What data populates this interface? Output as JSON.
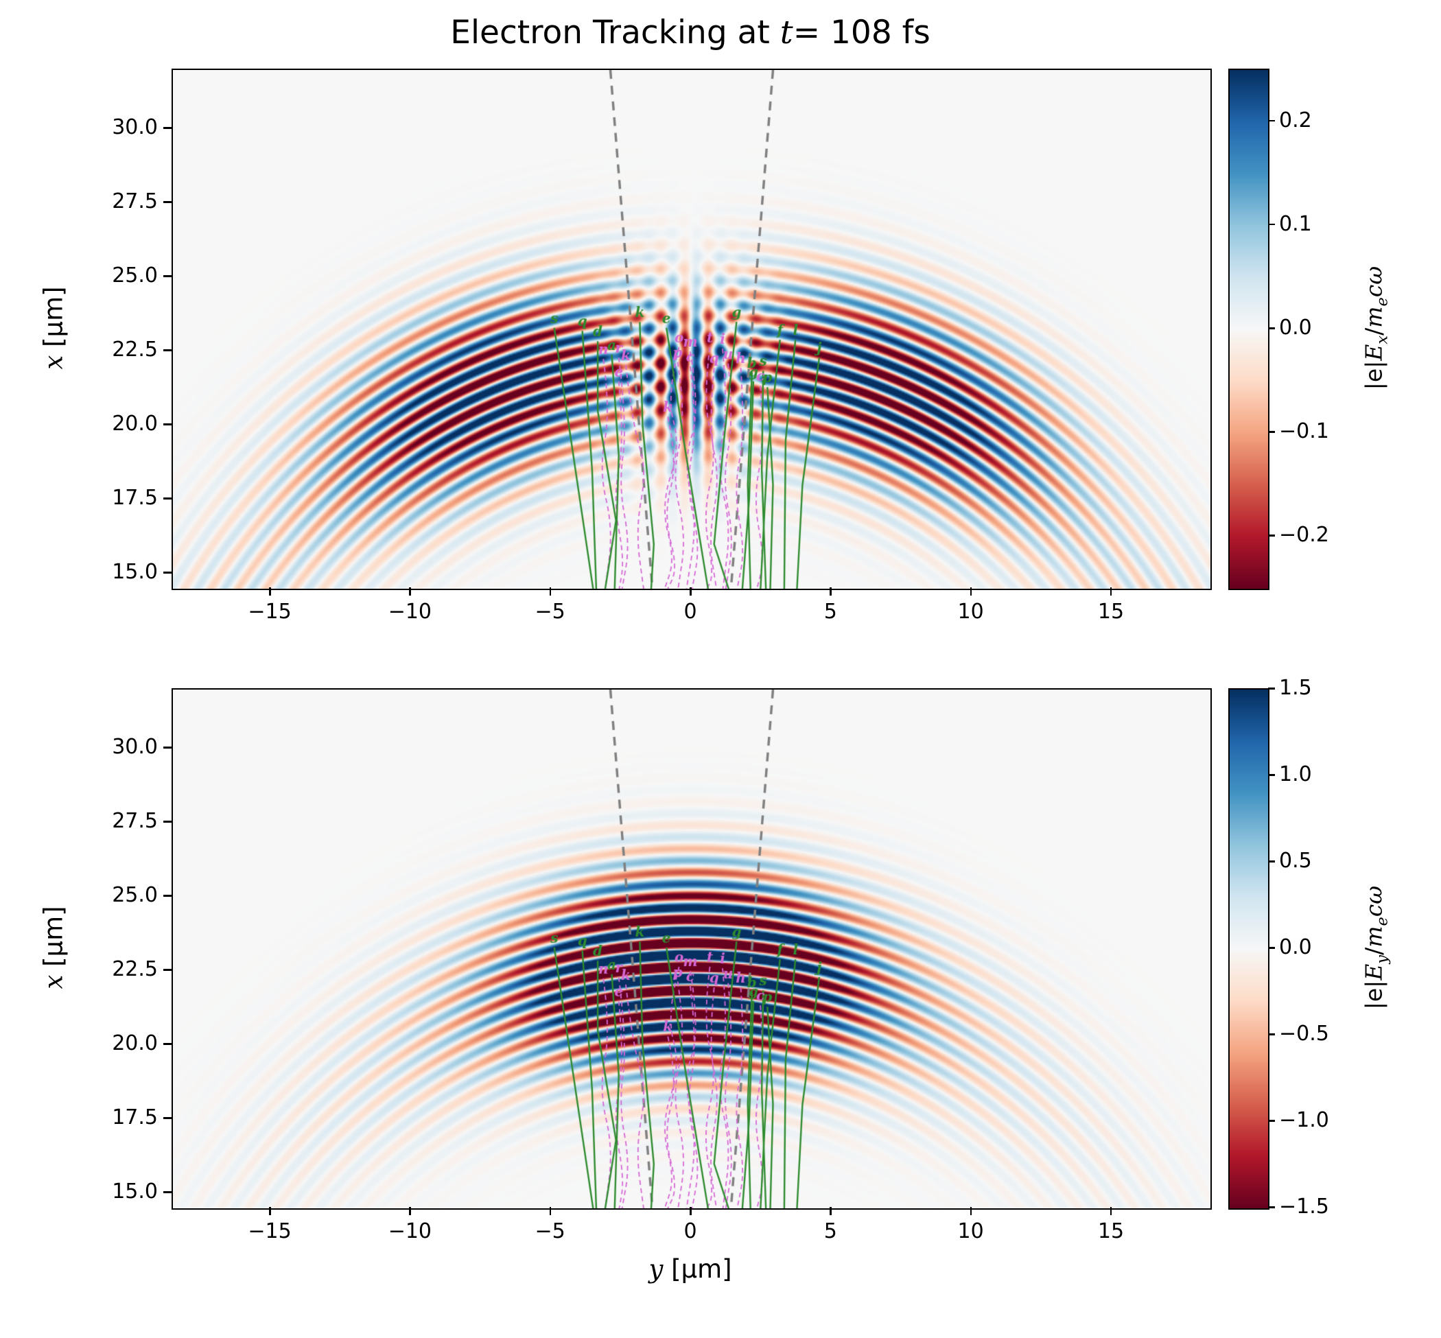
{
  "chart_data": {
    "type": "heatmap",
    "title": {
      "pre": "Electron Tracking at ",
      "var": "t",
      "post": "= 108 fs"
    },
    "x_axis": {
      "label_var": "y",
      "label_unit": " [μm]",
      "lim": [
        -18.5,
        18.5
      ],
      "ticks": [
        {
          "v": -15,
          "label": "−15"
        },
        {
          "v": -10,
          "label": "−10"
        },
        {
          "v": -5,
          "label": "−5"
        },
        {
          "v": 0,
          "label": "0"
        },
        {
          "v": 5,
          "label": "5"
        },
        {
          "v": 10,
          "label": "10"
        },
        {
          "v": 15,
          "label": "15"
        }
      ]
    },
    "y_axis": {
      "label_var": "x",
      "label_unit": " [μm]",
      "lim": [
        14.5,
        32.0
      ],
      "ticks": [
        {
          "v": 30.0,
          "label": "30.0"
        },
        {
          "v": 27.5,
          "label": "27.5"
        },
        {
          "v": 25.0,
          "label": "25.0"
        },
        {
          "v": 22.5,
          "label": "22.5"
        },
        {
          "v": 20.0,
          "label": "20.0"
        },
        {
          "v": 17.5,
          "label": "17.5"
        },
        {
          "v": 15.0,
          "label": "15.0"
        }
      ]
    },
    "colormap": {
      "name": "RdBu",
      "anchors": [
        [
          103,
          0,
          31
        ],
        [
          178,
          24,
          43
        ],
        [
          214,
          96,
          77
        ],
        [
          244,
          165,
          130
        ],
        [
          253,
          219,
          199
        ],
        [
          247,
          247,
          247
        ],
        [
          209,
          229,
          240
        ],
        [
          146,
          197,
          222
        ],
        [
          67,
          147,
          195
        ],
        [
          33,
          102,
          172
        ],
        [
          5,
          48,
          97
        ]
      ]
    },
    "colors": {
      "green_track": "#2e8b2e",
      "magenta_track": "#d567d5",
      "cone": "#808080",
      "background": "#f7f7f7"
    },
    "field": {
      "source_x": 3.2,
      "wavelength": 0.8,
      "pulse_r0": 19.3,
      "pulse_sigma": 2.9
    },
    "panels": [
      {
        "name": "Ex",
        "clim": [
          -0.25,
          0.25
        ],
        "colorbar": {
          "label": {
            "p1": "|e|",
            "p2": "E",
            "sub": "x",
            "p3": "/",
            "p4": "m",
            "sub2": "e",
            "p5": "c",
            "p6": "ω"
          },
          "range": [
            -0.25,
            0.25
          ],
          "ticks": [
            {
              "v": 0.2,
              "label": "0.2"
            },
            {
              "v": 0.1,
              "label": "0.1"
            },
            {
              "v": 0.0,
              "label": "0.0"
            },
            {
              "v": -0.1,
              "label": "−0.1"
            },
            {
              "v": -0.2,
              "label": "−0.2"
            }
          ]
        },
        "field": {
          "component": "Ex",
          "arc_amp": 0.55,
          "theta_sigma": 1.0,
          "phase": 0.5,
          "mod_base": 0.75,
          "mod_amp": 0.45,
          "mod_freq": 5.2,
          "mod_phase": -1.56,
          "center_amp": 0.27,
          "center_period": 0.85,
          "center_phase": 0.3,
          "center_y_sigma": 2.0,
          "center_x0": 21.6,
          "center_x_sigma": 2.6
        }
      },
      {
        "name": "Ey",
        "clim": [
          -1.5,
          1.5
        ],
        "colorbar": {
          "label": {
            "p1": "|e|",
            "p2": "E",
            "sub": "y",
            "p3": "/",
            "p4": "m",
            "sub2": "e",
            "p5": "c",
            "p6": "ω"
          },
          "range": [
            -1.5,
            1.5
          ],
          "ticks": [
            {
              "v": 1.5,
              "label": "1.5"
            },
            {
              "v": 1.0,
              "label": "1.0"
            },
            {
              "v": 0.5,
              "label": "0.5"
            },
            {
              "v": 0.0,
              "label": "0.0"
            },
            {
              "v": -0.5,
              "label": "−0.5"
            },
            {
              "v": -1.0,
              "label": "−1.0"
            },
            {
              "v": -1.5,
              "label": "−1.5"
            }
          ]
        },
        "field": {
          "component": "Ey",
          "amp": 2.6,
          "phase": 1.2,
          "lobe1": 1.0,
          "sigma1": 0.26,
          "lobe2": 0.33,
          "sigma2": 0.5,
          "lobe3": 0.07,
          "sigma3": 1.0
        }
      }
    ],
    "cone_lines": [
      [
        [
          -2.9,
          32.0
        ],
        [
          -1.4,
          14.5
        ]
      ],
      [
        [
          2.9,
          32.0
        ],
        [
          1.4,
          14.5
        ]
      ]
    ],
    "tracks": {
      "green": [
        {
          "label": "s",
          "pts": [
            [
              -4.9,
              23.3
            ],
            [
              -4.3,
              19.5
            ],
            [
              -3.5,
              14.4
            ]
          ]
        },
        {
          "label": "q",
          "pts": [
            [
              -3.9,
              23.2
            ],
            [
              -3.55,
              18.5
            ],
            [
              -3.4,
              14.4
            ]
          ]
        },
        {
          "label": "d",
          "pts": [
            [
              -3.35,
              22.85
            ],
            [
              -3.35,
              20.5
            ],
            [
              -2.7,
              16.8
            ],
            [
              -3.1,
              14.4
            ]
          ]
        },
        {
          "label": "a",
          "pts": [
            [
              -2.85,
              22.4
            ],
            [
              -2.6,
              19.0
            ],
            [
              -2.75,
              14.4
            ]
          ]
        },
        {
          "label": "k",
          "pts": [
            [
              -1.85,
              23.5
            ],
            [
              -1.75,
              20.0
            ],
            [
              -1.35,
              16.0
            ],
            [
              -1.45,
              14.4
            ]
          ]
        },
        {
          "label": "e",
          "pts": [
            [
              -0.9,
              23.3
            ],
            [
              -0.2,
              19.0
            ],
            [
              0.6,
              14.4
            ]
          ]
        },
        {
          "label": "g",
          "pts": [
            [
              1.6,
              23.5
            ],
            [
              1.15,
              19.5
            ],
            [
              0.8,
              16.0
            ],
            [
              1.35,
              14.4
            ]
          ]
        },
        {
          "label": "f",
          "pts": [
            [
              3.15,
              22.9
            ],
            [
              2.7,
              19.0
            ],
            [
              2.45,
              14.4
            ]
          ]
        },
        {
          "label": "l",
          "pts": [
            [
              3.7,
              22.9
            ],
            [
              3.35,
              19.5
            ],
            [
              3.3,
              14.4
            ]
          ]
        },
        {
          "label": "j",
          "pts": [
            [
              4.55,
              22.3
            ],
            [
              3.95,
              18.0
            ],
            [
              3.75,
              14.4
            ]
          ]
        },
        {
          "label": "b",
          "pts": [
            [
              2.15,
              21.8
            ],
            [
              2.0,
              18.0
            ],
            [
              2.1,
              14.4
            ]
          ]
        },
        {
          "label": "s",
          "pts": [
            [
              2.55,
              21.85
            ],
            [
              2.5,
              18.5
            ],
            [
              2.65,
              14.4
            ]
          ]
        },
        {
          "label": "g",
          "pts": [
            [
              2.2,
              21.5
            ],
            [
              2.05,
              17.5
            ],
            [
              1.8,
              14.4
            ]
          ]
        },
        {
          "label": "p",
          "pts": [
            [
              2.7,
              21.3
            ],
            [
              2.9,
              18.0
            ],
            [
              2.8,
              14.4
            ]
          ]
        }
      ],
      "magenta": [
        {
          "label": "n",
          "pts": [
            [
              -3.15,
              22.25
            ],
            [
              -2.9,
              20.5
            ],
            [
              -3.3,
              18.5
            ],
            [
              -2.8,
              16.5
            ],
            [
              -3.1,
              14.4
            ]
          ]
        },
        {
          "label": "r",
          "pts": [
            [
              -2.6,
              22.3
            ],
            [
              -2.3,
              20.0
            ],
            [
              -2.6,
              18.0
            ],
            [
              -2.2,
              16.0
            ],
            [
              -2.5,
              14.4
            ]
          ]
        },
        {
          "label": "k",
          "pts": [
            [
              -2.35,
              22.05
            ],
            [
              -2.1,
              20.0
            ],
            [
              -1.6,
              18.5
            ],
            [
              -2.0,
              16.5
            ],
            [
              -1.7,
              14.4
            ]
          ]
        },
        {
          "label": "e",
          "pts": [
            [
              -2.6,
              21.5
            ],
            [
              -2.4,
              19.5
            ],
            [
              -2.8,
              17.5
            ],
            [
              -2.4,
              15.5
            ],
            [
              -2.6,
              14.4
            ]
          ]
        },
        {
          "label": "o",
          "pts": [
            [
              -0.45,
              22.65
            ],
            [
              -0.9,
              21.0
            ],
            [
              -0.4,
              19.3
            ],
            [
              -1.1,
              17.3
            ],
            [
              -0.6,
              15.5
            ],
            [
              -1.0,
              14.4
            ]
          ]
        },
        {
          "label": "m",
          "pts": [
            [
              -0.05,
              22.5
            ],
            [
              0.3,
              20.5
            ],
            [
              -0.3,
              18.8
            ],
            [
              0.2,
              16.8
            ],
            [
              -0.2,
              14.4
            ]
          ]
        },
        {
          "label": "t",
          "pts": [
            [
              0.65,
              22.65
            ],
            [
              0.4,
              20.8
            ],
            [
              0.9,
              19.0
            ],
            [
              0.4,
              17.0
            ],
            [
              0.8,
              15.0
            ],
            [
              0.5,
              14.4
            ]
          ]
        },
        {
          "label": "i",
          "pts": [
            [
              1.1,
              22.6
            ],
            [
              1.3,
              20.6
            ],
            [
              0.9,
              18.6
            ],
            [
              1.4,
              16.6
            ],
            [
              1.1,
              14.4
            ]
          ]
        },
        {
          "label": "p",
          "pts": [
            [
              -0.5,
              22.15
            ],
            [
              -0.2,
              20.3
            ],
            [
              -0.7,
              18.3
            ],
            [
              -0.2,
              16.3
            ],
            [
              -0.5,
              14.4
            ]
          ]
        },
        {
          "label": "c",
          "pts": [
            [
              -0.05,
              22.0
            ],
            [
              0.2,
              20.0
            ],
            [
              -0.2,
              18.0
            ],
            [
              0.3,
              16.0
            ],
            [
              0.0,
              14.4
            ]
          ]
        },
        {
          "label": "q",
          "pts": [
            [
              0.8,
              21.95
            ],
            [
              0.6,
              20.0
            ],
            [
              1.0,
              18.2
            ],
            [
              0.6,
              16.2
            ],
            [
              0.9,
              14.4
            ]
          ]
        },
        {
          "label": "u",
          "pts": [
            [
              1.3,
              22.1
            ],
            [
              1.5,
              20.2
            ],
            [
              1.1,
              18.2
            ],
            [
              1.5,
              16.2
            ],
            [
              1.2,
              14.4
            ]
          ]
        },
        {
          "label": "h",
          "pts": [
            [
              1.75,
              21.95
            ],
            [
              1.9,
              19.8
            ],
            [
              1.5,
              17.8
            ],
            [
              1.9,
              15.8
            ],
            [
              1.6,
              14.4
            ]
          ]
        },
        {
          "label": "c",
          "pts": [
            [
              2.45,
              21.35
            ],
            [
              2.6,
              19.5
            ],
            [
              2.2,
              17.5
            ],
            [
              2.6,
              15.5
            ],
            [
              2.3,
              14.4
            ]
          ]
        },
        {
          "label": "k",
          "pts": [
            [
              -0.85,
              20.3
            ],
            [
              -0.5,
              18.8
            ],
            [
              -1.0,
              17.0
            ],
            [
              -0.5,
              15.2
            ],
            [
              -0.9,
              14.4
            ]
          ]
        }
      ]
    }
  }
}
